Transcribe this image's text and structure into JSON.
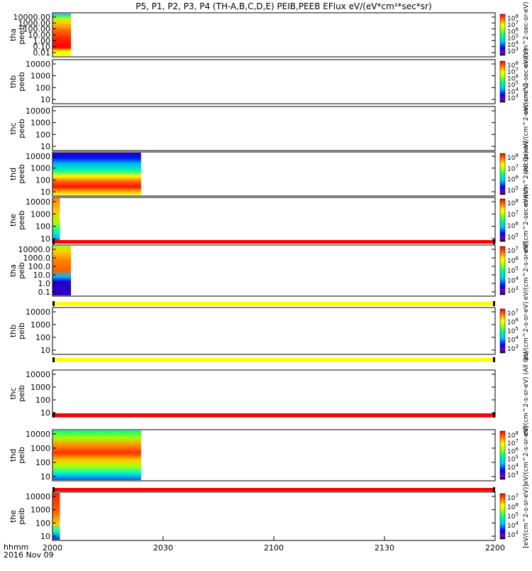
{
  "title": "P5, P1, P2, P3, P4 (TH-A,B,C,D,E) PEIB,PEEB EFlux eV/(eV*cm²*sec*sr)",
  "footer": {
    "time_unit": "hhmm",
    "date": "2016 Nov 09"
  },
  "colors": {
    "strip_red": "#ff0000",
    "strip_yellow": "#ffff00",
    "axis": "#000000"
  },
  "chart_data": {
    "type": "heatmap",
    "xlim": [
      "2000",
      "2200"
    ],
    "x_ticks": [
      "2000",
      "2030",
      "2100",
      "2130",
      "2200"
    ],
    "panels": [
      {
        "label": [
          "tha",
          "peeb"
        ],
        "yticks": [
          "10000.00",
          "1000.00",
          "100.00",
          "10.00",
          "1.00",
          "0.10",
          "0.01"
        ],
        "y_scale": "log",
        "data_x_range": [
          "2000",
          "2005"
        ],
        "colorbar_ticks": [
          "10^8",
          "10^7",
          "10^6",
          "10^5",
          "10^4",
          "10^3"
        ],
        "colorbar_label": "eV/(cm^2-sec-sr-eV)"
      },
      {
        "label": [
          "thb",
          "peeb"
        ],
        "yticks": [
          "10000",
          "1000",
          "100",
          "10"
        ],
        "y_scale": "log",
        "data_x_range": [],
        "colorbar_ticks": [
          "10^8",
          "10^7",
          "10^6",
          "10^5",
          "10^4",
          "10^3"
        ],
        "colorbar_label": "eV/(cm^2-sec-sr-eV)"
      },
      {
        "label": [
          "thc",
          "peeb"
        ],
        "yticks": [
          "10000",
          "1000",
          "100",
          "10"
        ],
        "y_scale": "log",
        "data_x_range": [],
        "colorbar_ticks": [],
        "colorbar_label": "(All Qs) eV/(cm^2-sec-sr-eV)"
      },
      {
        "label": [
          "thd",
          "peeb"
        ],
        "yticks": [
          "10000",
          "1000",
          "100",
          "10"
        ],
        "y_scale": "log",
        "data_x_range": [
          "2000",
          "2024"
        ],
        "colorbar_ticks": [
          "10^8",
          "10^7",
          "10^6",
          "10^5"
        ],
        "colorbar_label": "eV/(cm^2-sec-sr-eV)"
      },
      {
        "label": [
          "the",
          "peeb"
        ],
        "yticks": [
          "10000",
          "1000",
          "100",
          "10"
        ],
        "y_scale": "log",
        "data_x_range": [
          "2000",
          "2002"
        ],
        "colorbar_ticks": [
          "10^8",
          "10^7",
          "10^6",
          "10^5"
        ],
        "colorbar_label": "eV/(cm^2-sec-sr-eV)"
      },
      {
        "label": [
          "tha",
          "peib"
        ],
        "yticks": [
          "10000.0",
          "1000.0",
          "100.0",
          "10.0",
          "1.0",
          "0.1"
        ],
        "y_scale": "log",
        "data_x_range": [
          "2000",
          "2005"
        ],
        "colorbar_ticks": [
          "10^7",
          "10^6",
          "10^5",
          "10^4",
          "10^3"
        ],
        "colorbar_label": "eV/(cm^2-s-sr-eV)"
      },
      {
        "label": [
          "thb",
          "peib"
        ],
        "yticks": [
          "10000",
          "1000",
          "100",
          "10"
        ],
        "y_scale": "log",
        "data_x_range": [],
        "colorbar_ticks": [
          "10^7",
          "10^6",
          "10^5",
          "10^4",
          "10^3"
        ],
        "colorbar_label": "eV/(cm^2-s-sr-eV)"
      },
      {
        "label": [
          "thc",
          "peib"
        ],
        "yticks": [
          "10000",
          "1000",
          "100",
          "10"
        ],
        "y_scale": "log",
        "data_x_range": [],
        "colorbar_ticks": [],
        "colorbar_label": "eV/(cm^2-s-sr-eV) (All Qs)"
      },
      {
        "label": [
          "thd",
          "peib"
        ],
        "yticks": [
          "10000",
          "1000",
          "100",
          "10"
        ],
        "y_scale": "log",
        "data_x_range": [
          "2000",
          "2024"
        ],
        "colorbar_ticks": [
          "10^8",
          "10^7",
          "10^6",
          "10^5",
          "10^4",
          "10^3"
        ],
        "colorbar_label": "eV/(cm^2-s-sr-eV)"
      },
      {
        "label": [
          "the",
          "peib"
        ],
        "yticks": [
          "10000",
          "1000",
          "100",
          "10"
        ],
        "y_scale": "log",
        "data_x_range": [
          "2000",
          "2002"
        ],
        "colorbar_ticks": [
          "10^7",
          "10^6",
          "10^5",
          "10^4",
          "10^3"
        ],
        "colorbar_label": "[eV/(cm^2-s-sr-eV)]"
      }
    ]
  }
}
